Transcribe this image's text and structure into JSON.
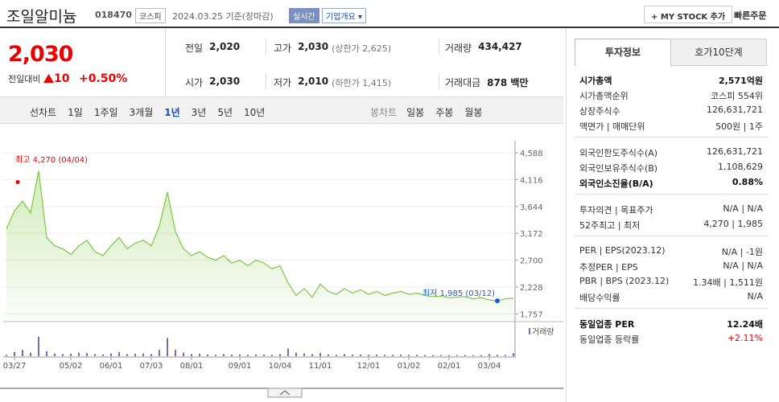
{
  "header": {
    "name": "조일알미늄",
    "code": "018470",
    "market": "코스피",
    "date": "2024.03.25",
    "basis": "기준(장마감)",
    "badge": "실시간",
    "overview": "기업개요",
    "mystock": "MY STOCK 추가",
    "order": "빠른주문"
  },
  "price": {
    "current": "2,030",
    "change_label": "전일대비",
    "change": "10",
    "rate": "+0.50%"
  },
  "stats": [
    {
      "label": "전일",
      "value": "2,020"
    },
    {
      "label": "고가",
      "value": "2,030",
      "note": "(상한가 2,625)"
    },
    {
      "label": "거래량",
      "value": "434,427"
    },
    {
      "label": "시가",
      "value": "2,030"
    },
    {
      "label": "저가",
      "value": "2,010",
      "note": "(하한가 1,415)"
    },
    {
      "label": "거래대금",
      "value": "878 백만"
    }
  ],
  "tabs": {
    "line_label": "선차트",
    "periods": [
      "1일",
      "1주일",
      "3개월",
      "1년",
      "3년",
      "5년",
      "10년"
    ],
    "candle_label": "봉차트",
    "candles": [
      "일봉",
      "주봉",
      "월봉"
    ]
  },
  "chart_data": [
    {
      "type": "line",
      "color": "#7cc940",
      "categories": [
        null,
        "03/27",
        null,
        null,
        null,
        null,
        null,
        null,
        "05/02",
        null,
        null,
        null,
        null,
        "06/01",
        null,
        null,
        null,
        null,
        "07/03",
        null,
        null,
        null,
        null,
        "08/01",
        null,
        null,
        null,
        null,
        null,
        "09/01",
        null,
        null,
        null,
        null,
        "10/04",
        null,
        null,
        null,
        null,
        "11/01",
        null,
        null,
        null,
        null,
        null,
        "12/01",
        null,
        null,
        null,
        null,
        "01/02",
        null,
        null,
        null,
        null,
        "02/01",
        null,
        null,
        null,
        null,
        "03/04",
        null,
        null,
        null
      ],
      "values": [
        3246,
        3570,
        3740,
        3530,
        4270,
        3100,
        2950,
        2900,
        2800,
        2950,
        3050,
        2850,
        2780,
        2950,
        3100,
        2900,
        3000,
        3050,
        2950,
        3300,
        3900,
        3200,
        2900,
        2780,
        2850,
        2750,
        2700,
        2780,
        2650,
        2700,
        2600,
        2700,
        2650,
        2550,
        2600,
        2300,
        2080,
        2200,
        2050,
        2280,
        2150,
        2100,
        2200,
        2120,
        2180,
        2100,
        2150,
        2080,
        2120,
        2150,
        2100,
        2120,
        2080,
        2060,
        2070,
        2040,
        2050,
        2060,
        2020,
        2040,
        2000,
        1985,
        2020,
        2030
      ],
      "ylim": [
        1620,
        4730
      ],
      "yticks": [
        {
          "value": 4588,
          "label": "4,588"
        },
        {
          "value": 4116,
          "label": "4,116"
        },
        {
          "value": 3644,
          "label": "3,644"
        },
        {
          "value": 3172,
          "label": "3,172"
        },
        {
          "value": 2700,
          "label": "2,700"
        },
        {
          "value": 2228,
          "label": "2,228"
        },
        {
          "value": 1757,
          "label": "1,757"
        }
      ],
      "grid": true,
      "high": {
        "text": "최고 4,270 (04/04)",
        "value": 4270,
        "color": "#e00"
      },
      "low": {
        "text": "최저 1,985 (03/12)",
        "value": 1985,
        "color": "#1a5fd0"
      }
    },
    {
      "type": "bar",
      "legend": "거래량",
      "color": "#7a6aa8",
      "ylim": [
        0,
        3000000
      ],
      "values": [
        200000,
        600000,
        900000,
        500000,
        2800000,
        700000,
        400000,
        300000,
        350000,
        500000,
        450000,
        300000,
        250000,
        400000,
        600000,
        300000,
        350000,
        400000,
        300000,
        900000,
        2600000,
        900000,
        500000,
        300000,
        350000,
        250000,
        200000,
        300000,
        220000,
        250000,
        200000,
        260000,
        220000,
        180000,
        300000,
        1100000,
        500000,
        400000,
        300000,
        450000,
        250000,
        200000,
        300000,
        220000,
        250000,
        200000,
        230000,
        180000,
        200000,
        220000,
        180000,
        200000,
        170000,
        150000,
        160000,
        140000,
        150000,
        160000,
        130000,
        150000,
        300000,
        200000,
        180000,
        434427
      ]
    }
  ],
  "info": {
    "tabs": [
      "투자정보",
      "호가10단계"
    ],
    "sections": [
      [
        {
          "label": "시가총액",
          "value": "2,571억원",
          "strong": true
        },
        {
          "label": "시가총액순위",
          "value": "코스피 554위"
        },
        {
          "label": "상장주식수",
          "value": "126,631,721"
        },
        {
          "label": "액면가 | 매매단위",
          "value": "500원 | 1주"
        }
      ],
      [
        {
          "label": "외국인한도주식수(A)",
          "value": "126,631,721"
        },
        {
          "label": "외국인보유주식수(B)",
          "value": "1,108,629"
        },
        {
          "label": "외국인소진율(B/A)",
          "value": "0.88%",
          "strong": true
        }
      ],
      [
        {
          "label": "투자의견 | 목표주가",
          "value": "N/A | N/A"
        },
        {
          "label": "52주최고 | 최저",
          "value": "4,270 | 1,985"
        }
      ],
      [
        {
          "label": "PER | EPS(2023.12)",
          "value": "N/A | -1원"
        },
        {
          "label": "추정PER | EPS",
          "value": "N/A | N/A"
        },
        {
          "label": "PBR | BPS (2023.12)",
          "value": "1.34배 | 1,511원"
        },
        {
          "label": "배당수익률",
          "value": "N/A"
        }
      ],
      [
        {
          "label": "동일업종 PER",
          "value": "12.24배",
          "strong": true
        },
        {
          "label": "동일업종 등락률",
          "value": "+2.11%",
          "red": true
        }
      ]
    ]
  }
}
